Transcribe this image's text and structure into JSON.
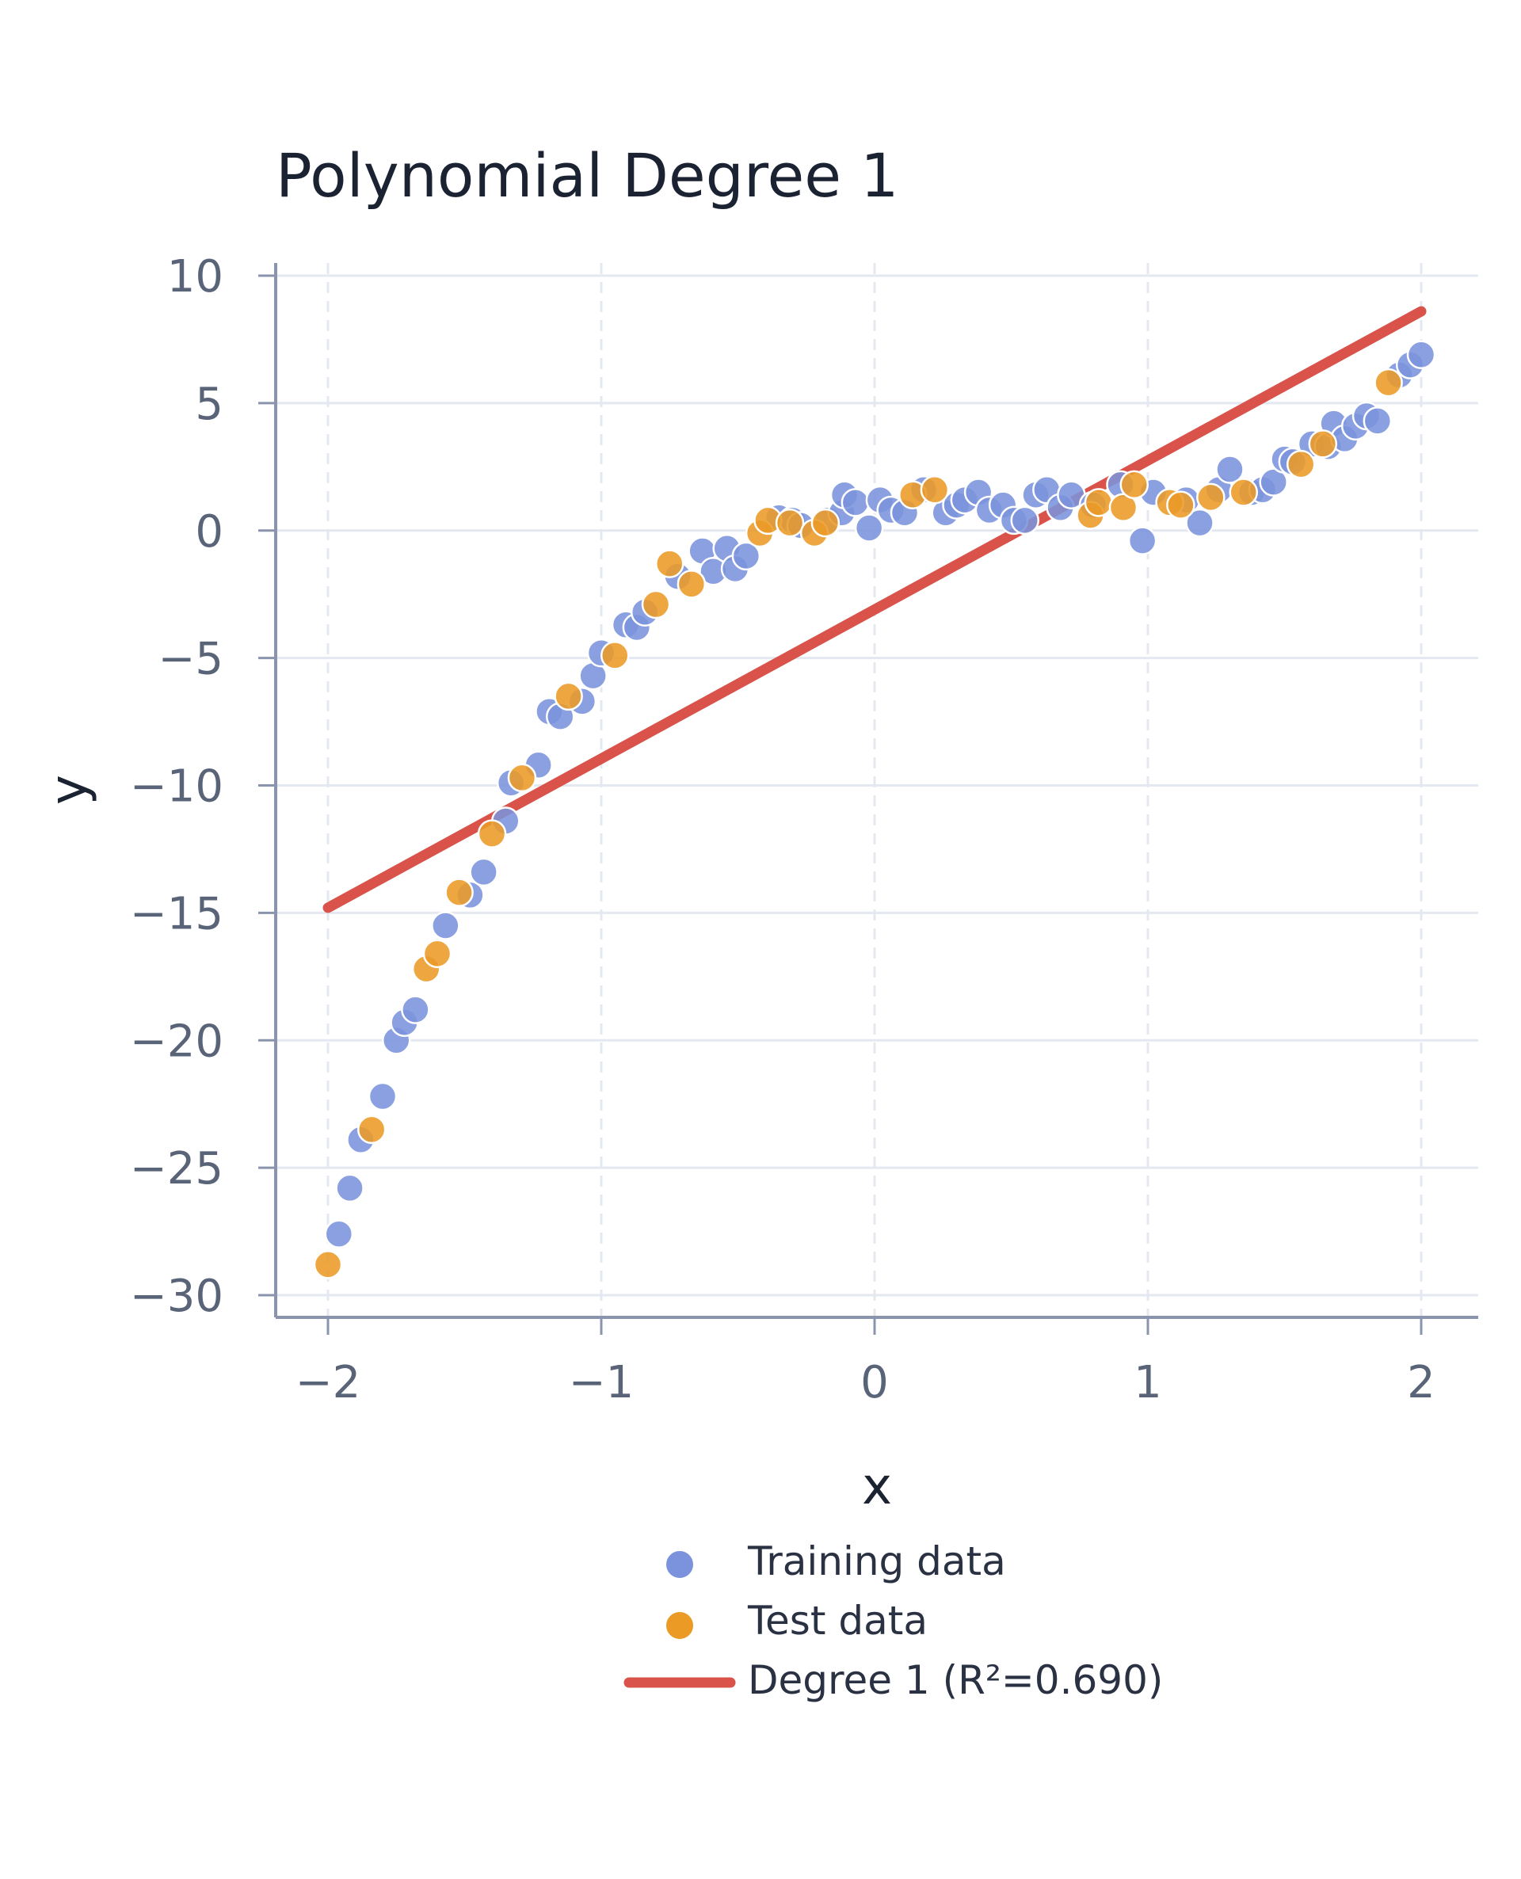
{
  "chart_data": {
    "type": "scatter",
    "title": "Polynomial Degree 1",
    "xlabel": "x",
    "ylabel": "y",
    "xlim": [
      -2.2,
      2.2
    ],
    "ylim": [
      -30.5,
      10.5
    ],
    "xticks": [
      -2,
      -1,
      0,
      1,
      2
    ],
    "xtick_labels": [
      "−2",
      "−1",
      "0",
      "1",
      "2"
    ],
    "yticks": [
      10,
      5,
      0,
      -5,
      -10,
      -15,
      -20,
      -25,
      -30
    ],
    "ytick_labels": [
      "10",
      "5",
      "0",
      "−5",
      "−10",
      "−15",
      "−20",
      "−25",
      "−30"
    ],
    "grid": true,
    "legend_position": "bottom-center",
    "colors": {
      "train": "#7b93dc",
      "test": "#eb9a25",
      "fit": "#d9534a"
    },
    "series": [
      {
        "name": "Training data",
        "kind": "scatter",
        "points": [
          [
            -1.96,
            -27.6
          ],
          [
            -1.92,
            -25.8
          ],
          [
            -1.88,
            -23.9
          ],
          [
            -1.8,
            -22.2
          ],
          [
            -1.75,
            -20.0
          ],
          [
            -1.72,
            -19.3
          ],
          [
            -1.68,
            -18.8
          ],
          [
            -1.57,
            -15.5
          ],
          [
            -1.48,
            -14.3
          ],
          [
            -1.43,
            -13.4
          ],
          [
            -1.35,
            -11.4
          ],
          [
            -1.33,
            -9.9
          ],
          [
            -1.23,
            -9.2
          ],
          [
            -1.19,
            -7.1
          ],
          [
            -1.15,
            -7.3
          ],
          [
            -1.07,
            -6.7
          ],
          [
            -1.03,
            -5.7
          ],
          [
            -1.0,
            -4.8
          ],
          [
            -0.91,
            -3.7
          ],
          [
            -0.87,
            -3.8
          ],
          [
            -0.84,
            -3.2
          ],
          [
            -0.72,
            -1.8
          ],
          [
            -0.63,
            -0.8
          ],
          [
            -0.59,
            -1.6
          ],
          [
            -0.54,
            -0.7
          ],
          [
            -0.51,
            -1.5
          ],
          [
            -0.47,
            -1.0
          ],
          [
            -0.35,
            0.5
          ],
          [
            -0.3,
            0.4
          ],
          [
            -0.27,
            0.2
          ],
          [
            -0.17,
            0.4
          ],
          [
            -0.12,
            0.7
          ],
          [
            -0.11,
            1.4
          ],
          [
            -0.07,
            1.1
          ],
          [
            -0.02,
            0.1
          ],
          [
            0.02,
            1.2
          ],
          [
            0.06,
            0.8
          ],
          [
            0.11,
            0.7
          ],
          [
            0.18,
            1.6
          ],
          [
            0.26,
            0.7
          ],
          [
            0.3,
            1.0
          ],
          [
            0.33,
            1.2
          ],
          [
            0.38,
            1.5
          ],
          [
            0.42,
            0.8
          ],
          [
            0.47,
            1.0
          ],
          [
            0.51,
            0.4
          ],
          [
            0.55,
            0.4
          ],
          [
            0.59,
            1.4
          ],
          [
            0.63,
            1.6
          ],
          [
            0.68,
            0.9
          ],
          [
            0.72,
            1.4
          ],
          [
            0.8,
            1.0
          ],
          [
            0.9,
            1.8
          ],
          [
            0.98,
            -0.4
          ],
          [
            1.02,
            1.5
          ],
          [
            1.14,
            1.2
          ],
          [
            1.19,
            0.3
          ],
          [
            1.26,
            1.6
          ],
          [
            1.3,
            2.4
          ],
          [
            1.38,
            1.5
          ],
          [
            1.42,
            1.6
          ],
          [
            1.46,
            1.9
          ],
          [
            1.5,
            2.8
          ],
          [
            1.53,
            2.7
          ],
          [
            1.6,
            3.4
          ],
          [
            1.66,
            3.3
          ],
          [
            1.68,
            4.2
          ],
          [
            1.72,
            3.6
          ],
          [
            1.76,
            4.1
          ],
          [
            1.8,
            4.5
          ],
          [
            1.84,
            4.3
          ],
          [
            1.92,
            6.1
          ],
          [
            1.96,
            6.5
          ],
          [
            2.0,
            6.9
          ]
        ]
      },
      {
        "name": "Test data",
        "kind": "scatter",
        "points": [
          [
            -2.0,
            -28.8
          ],
          [
            -1.84,
            -23.5
          ],
          [
            -1.64,
            -17.2
          ],
          [
            -1.6,
            -16.6
          ],
          [
            -1.52,
            -14.2
          ],
          [
            -1.4,
            -11.9
          ],
          [
            -1.29,
            -9.7
          ],
          [
            -1.12,
            -6.5
          ],
          [
            -0.95,
            -4.9
          ],
          [
            -0.8,
            -2.9
          ],
          [
            -0.75,
            -1.3
          ],
          [
            -0.67,
            -2.1
          ],
          [
            -0.42,
            -0.1
          ],
          [
            -0.39,
            0.4
          ],
          [
            -0.31,
            0.3
          ],
          [
            -0.22,
            -0.1
          ],
          [
            -0.18,
            0.3
          ],
          [
            0.14,
            1.4
          ],
          [
            0.22,
            1.6
          ],
          [
            0.79,
            0.6
          ],
          [
            0.82,
            1.1
          ],
          [
            0.91,
            0.9
          ],
          [
            0.95,
            1.8
          ],
          [
            1.08,
            1.1
          ],
          [
            1.12,
            1.0
          ],
          [
            1.23,
            1.3
          ],
          [
            1.35,
            1.5
          ],
          [
            1.56,
            2.6
          ],
          [
            1.64,
            3.4
          ],
          [
            1.88,
            5.8
          ]
        ]
      },
      {
        "name": "Degree 1 (R²=0.690)",
        "kind": "line",
        "points": [
          [
            -2.0,
            -14.8
          ],
          [
            2.0,
            8.6
          ]
        ]
      }
    ]
  }
}
